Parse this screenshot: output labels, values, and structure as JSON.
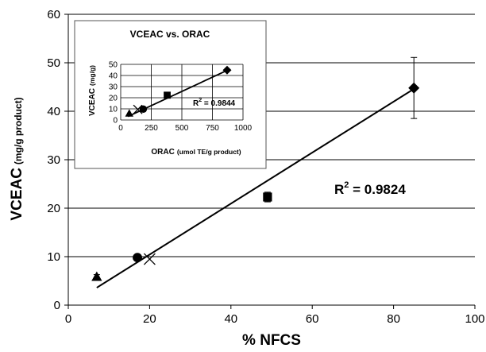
{
  "chart_data": [
    {
      "type": "scatter",
      "xlabel": "% NFCS",
      "ylabel": "VCEAC",
      "ylabel_unit": "(mg/g product)",
      "xlim": [
        0,
        100
      ],
      "ylim": [
        0,
        60
      ],
      "xticks": [
        0,
        20,
        40,
        60,
        80,
        100
      ],
      "yticks": [
        0,
        10,
        20,
        30,
        40,
        50,
        60
      ],
      "grid": "horizontal",
      "points": [
        {
          "marker": "triangle",
          "x": 7,
          "y": 5.8,
          "err": 0.5
        },
        {
          "marker": "circle",
          "x": 17,
          "y": 9.8,
          "err": 0.3
        },
        {
          "marker": "x",
          "x": 20,
          "y": 9.5,
          "err": 0
        },
        {
          "marker": "square",
          "x": 49,
          "y": 22.3,
          "err": 1.0
        },
        {
          "marker": "diamond",
          "x": 85,
          "y": 44.8,
          "err": 6.3
        }
      ],
      "trendline": {
        "x": [
          7,
          85
        ],
        "y": [
          3.6,
          44.6
        ]
      },
      "annotation": {
        "prefix": "R",
        "sup": "2",
        "text": " = 0.9824"
      }
    },
    {
      "type": "scatter",
      "title": "VCEAC vs. ORAC",
      "xlabel": "ORAC",
      "xlabel_unit": "(umol TE/g product)",
      "ylabel": "VCEAC",
      "ylabel_unit": "(mg/g)",
      "xlim": [
        0,
        1000
      ],
      "ylim": [
        0,
        50
      ],
      "xticks": [
        0,
        250,
        500,
        750,
        1000
      ],
      "yticks": [
        0,
        10,
        20,
        30,
        40,
        50
      ],
      "grid": "both",
      "points": [
        {
          "marker": "triangle",
          "x": 70,
          "y": 5.8
        },
        {
          "marker": "x",
          "x": 140,
          "y": 9.5
        },
        {
          "marker": "circle",
          "x": 185,
          "y": 9.8
        },
        {
          "marker": "square",
          "x": 380,
          "y": 22.3
        },
        {
          "marker": "diamond",
          "x": 870,
          "y": 44.8
        }
      ],
      "trendline": {
        "x": [
          60,
          870
        ],
        "y": [
          3.2,
          44.6
        ]
      },
      "annotation": {
        "prefix": "R",
        "sup": "2",
        "text": " = 0.9844"
      }
    }
  ]
}
